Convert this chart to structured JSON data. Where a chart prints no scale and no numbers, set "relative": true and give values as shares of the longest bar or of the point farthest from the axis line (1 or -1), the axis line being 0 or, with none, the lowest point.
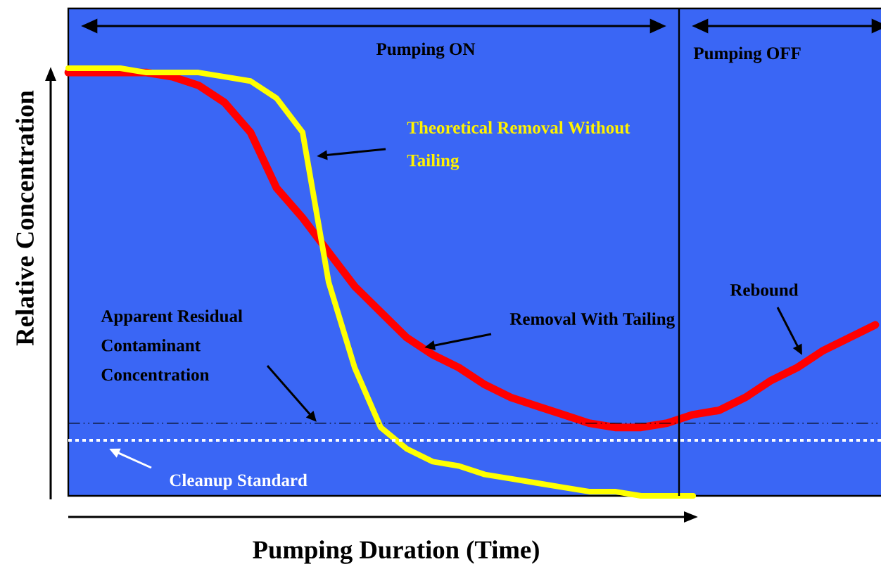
{
  "chart_data": {
    "type": "line",
    "relative": true,
    "xlabel": "Pumping Duration (Time)",
    "ylabel": "Relative Concentration",
    "categories": [
      null,
      null,
      null,
      null,
      null,
      null,
      null,
      null,
      null,
      null,
      null,
      null,
      null,
      null,
      null,
      null,
      null,
      null,
      null,
      null,
      null,
      null,
      null,
      null,
      null,
      null,
      null,
      null,
      null,
      null,
      null,
      null
    ],
    "series": [
      {
        "color": "#ff0000",
        "values": [
          0.99,
          0.99,
          0.99,
          0.99,
          0.98,
          0.96,
          0.92,
          0.85,
          0.72,
          0.65,
          0.57,
          0.49,
          0.43,
          0.37,
          0.33,
          0.3,
          0.26,
          0.23,
          0.21,
          0.19,
          0.17,
          0.16,
          0.16,
          0.17,
          0.19,
          0.2,
          0.23,
          0.27,
          0.3,
          0.34,
          0.37,
          0.4
        ]
      },
      {
        "color": "#ffff00",
        "values": [
          1.0,
          1.0,
          1.0,
          0.99,
          0.99,
          0.99,
          0.98,
          0.97,
          0.93,
          0.85,
          0.5,
          0.3,
          0.16,
          0.11,
          0.08,
          0.07,
          0.05,
          0.04,
          0.03,
          0.02,
          0.01,
          0.01,
          0.0,
          0.0,
          0.0,
          null,
          null,
          null,
          null,
          null,
          null,
          null
        ]
      }
    ],
    "ref_lines": [
      {
        "axis": "y",
        "value": 0.17,
        "label": "Apparent Residual Contaminant Concentration",
        "color": "#000000",
        "line_style": "dashdot"
      },
      {
        "axis": "y",
        "value": 0.13,
        "label": "Cleanup Standard",
        "color": "#ffffff",
        "line_style": "dashed"
      }
    ],
    "annotations": [
      "Pumping ON",
      "Pumping OFF",
      "Theoretical Removal Without Tailing",
      "Removal With Tailing",
      "Rebound"
    ],
    "marker": "none",
    "line_style": "solid"
  }
}
